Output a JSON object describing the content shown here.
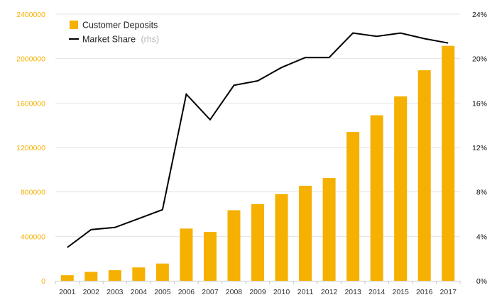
{
  "chart_data": {
    "type": "bar",
    "title": "",
    "xlabel": "",
    "ylabel": "",
    "categories": [
      "2001",
      "2002",
      "2003",
      "2004",
      "2005",
      "2006",
      "2007",
      "2008",
      "2009",
      "2010",
      "2011",
      "2012",
      "2013",
      "2014",
      "2015",
      "2016",
      "2017"
    ],
    "series": [
      {
        "name": "Customer Deposits",
        "type": "bar",
        "axis": "left",
        "color": "#f5b000",
        "values": [
          50000,
          80000,
          95000,
          120000,
          155000,
          470000,
          440000,
          635000,
          690000,
          780000,
          855000,
          925000,
          1340000,
          1490000,
          1660000,
          1895000,
          2115000
        ]
      },
      {
        "name": "Market Share",
        "name_suffix": "(rhs)",
        "type": "line",
        "axis": "right",
        "color": "#000000",
        "values": [
          0.03,
          0.046,
          0.048,
          0.056,
          0.064,
          0.168,
          0.145,
          0.176,
          0.18,
          0.192,
          0.201,
          0.201,
          0.223,
          0.22,
          0.223,
          0.218,
          0.214
        ]
      }
    ],
    "y_left": {
      "ylim": [
        0,
        2400000
      ],
      "ticks": [
        0,
        400000,
        800000,
        1200000,
        1600000,
        2000000,
        2400000
      ],
      "tick_labels": [
        "0",
        "400000",
        "800000",
        "1200000",
        "1600000",
        "2000000",
        "2400000"
      ],
      "label_color": "#f5b000"
    },
    "y_right": {
      "ylim": [
        0,
        0.24
      ],
      "ticks": [
        0,
        0.04,
        0.08,
        0.12,
        0.16,
        0.2,
        0.24
      ],
      "tick_labels": [
        "0%",
        "4%",
        "8%",
        "12%",
        "16%",
        "20%",
        "24%"
      ],
      "label_color": "#111111"
    },
    "grid": true,
    "legend": "top-left"
  }
}
